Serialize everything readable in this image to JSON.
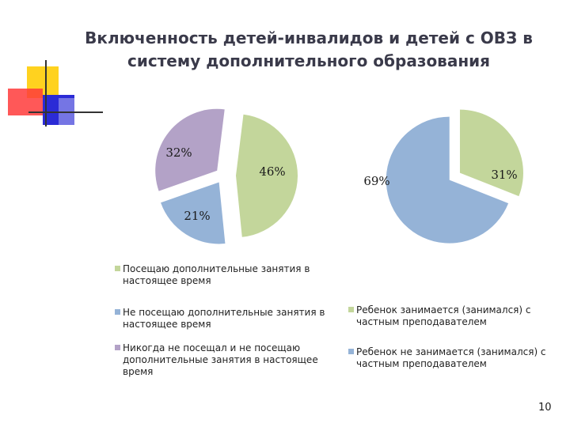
{
  "title": "Включенность детей-инвалидов и детей с ОВЗ в систему дополнительного образования",
  "page_number": "10",
  "colors": {
    "green": "#c3d69b",
    "blue": "#95b3d7",
    "purple": "#b3a2c7"
  },
  "chart_data": [
    {
      "type": "pie",
      "slices": [
        {
          "label": "Посещаю дополнительные занятия в настоящее время",
          "value": 46,
          "display": "46%",
          "color": "#c3d69b"
        },
        {
          "label": "Не посещаю дополнительные занятия в настоящее время",
          "value": 21,
          "display": "21%",
          "color": "#95b3d7"
        },
        {
          "label": "Никогда не посещал и не посещаю дополнительные занятия в настоящее время",
          "value": 32,
          "display": "32%",
          "color": "#b3a2c7"
        }
      ]
    },
    {
      "type": "pie",
      "slices": [
        {
          "label": "Ребенок занимается (занимался) с частным преподавателем",
          "value": 31,
          "display": "31%",
          "color": "#c3d69b"
        },
        {
          "label": "Ребенок не занимается (занимался) с частным преподавателем",
          "value": 69,
          "display": "69%",
          "color": "#95b3d7"
        }
      ]
    }
  ]
}
